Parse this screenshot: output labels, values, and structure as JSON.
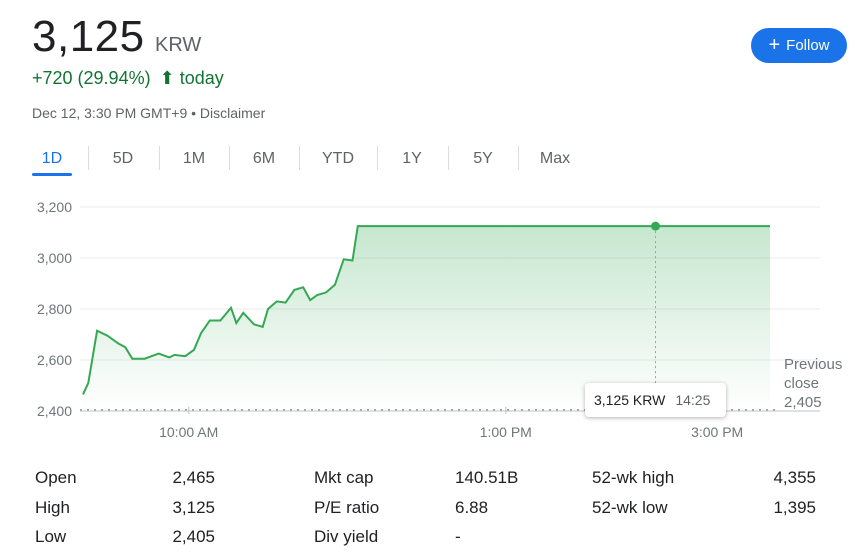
{
  "quote": {
    "price": "3,125",
    "currency": "KRW",
    "change": "+720 (29.94%)",
    "change_suffix": "today",
    "timestamp": "Dec 12, 3:30 PM GMT+9 • Disclaimer"
  },
  "follow_button": {
    "label": "Follow",
    "icon": "plus-icon"
  },
  "tabs": [
    "1D",
    "5D",
    "1M",
    "6M",
    "YTD",
    "1Y",
    "5Y",
    "Max"
  ],
  "active_tab": "1D",
  "colors": {
    "positive": "#137333",
    "line": "#34a853",
    "accent": "#1a73e8"
  },
  "tooltip": {
    "price": "3,125 KRW",
    "time": "14:25"
  },
  "previous_close": {
    "label_line1": "Previous",
    "label_line2": "close",
    "value": "2,405"
  },
  "chart_data": {
    "type": "area",
    "title": "",
    "xlabel": "",
    "ylabel": "",
    "ylim": [
      2400,
      3200
    ],
    "y_ticks": [
      "3,200",
      "3,000",
      "2,800",
      "2,600",
      "2,400"
    ],
    "x_ticks": [
      "10:00 AM",
      "1:00 PM",
      "3:00 PM"
    ],
    "grid": true,
    "baseline": 2405,
    "x": [
      "09:00",
      "09:03",
      "09:08",
      "09:14",
      "09:20",
      "09:24",
      "09:28",
      "09:35",
      "09:43",
      "09:49",
      "09:52",
      "09:58",
      "10:03",
      "10:07",
      "10:12",
      "10:18",
      "10:24",
      "10:27",
      "10:31",
      "10:37",
      "10:42",
      "10:45",
      "10:50",
      "10:55",
      "11:00",
      "11:05",
      "11:09",
      "11:13",
      "11:18",
      "11:23",
      "11:28",
      "11:33",
      "11:36",
      "11:42",
      "11:45",
      "11:50",
      "11:55",
      "11:59",
      "12:03",
      "14:25",
      "15:30"
    ],
    "values": [
      2465,
      2510,
      2715,
      2695,
      2665,
      2650,
      2605,
      2605,
      2625,
      2610,
      2620,
      2615,
      2640,
      2705,
      2755,
      2755,
      2805,
      2745,
      2785,
      2740,
      2730,
      2800,
      2830,
      2825,
      2875,
      2885,
      2835,
      2855,
      2865,
      2895,
      2995,
      2990,
      3125,
      3125,
      3125,
      3125,
      3125,
      3125,
      3125,
      3125,
      3125
    ],
    "highlight": {
      "x": "14:25",
      "y": 3125
    }
  },
  "stats": {
    "col1": [
      {
        "label": "Open",
        "value": "2,465"
      },
      {
        "label": "High",
        "value": "3,125"
      },
      {
        "label": "Low",
        "value": "2,405"
      }
    ],
    "col2": [
      {
        "label": "Mkt cap",
        "value": "140.51B"
      },
      {
        "label": "P/E ratio",
        "value": "6.88"
      },
      {
        "label": "Div yield",
        "value": "-"
      }
    ],
    "col3": [
      {
        "label": "52-wk high",
        "value": "4,355"
      },
      {
        "label": "52-wk low",
        "value": "1,395"
      }
    ]
  }
}
